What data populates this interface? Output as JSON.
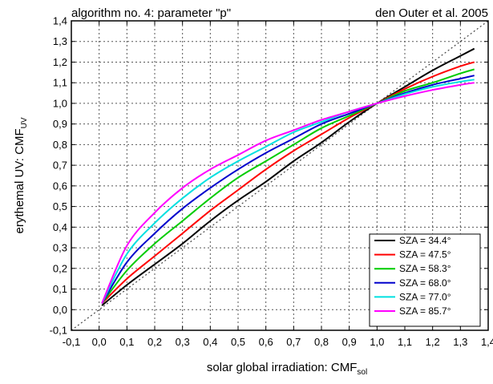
{
  "chart_data": {
    "type": "line",
    "title_left": "algorithm no. 4: parameter \"p\"",
    "title_right": "den Outer et al. 2005",
    "xlabel_main": "solar global irradiation: CMF",
    "xlabel_sub": "sol",
    "ylabel_main": "erythemal UV: CMF",
    "ylabel_sub": "UV",
    "xlim": [
      -0.1,
      1.4
    ],
    "ylim": [
      -0.1,
      1.4
    ],
    "xticks": [
      "-0,1",
      "0,0",
      "0,1",
      "0,2",
      "0,3",
      "0,4",
      "0,5",
      "0,6",
      "0,7",
      "0,8",
      "0,9",
      "1,0",
      "1,1",
      "1,2",
      "1,3",
      "1,4"
    ],
    "yticks": [
      "-0,1",
      "0,0",
      "0,1",
      "0,2",
      "0,3",
      "0,4",
      "0,5",
      "0,6",
      "0,7",
      "0,8",
      "0,9",
      "1,0",
      "1,1",
      "1,2",
      "1,3",
      "1,4"
    ],
    "grid": true,
    "legend_position": "bottom-right",
    "reference_line": {
      "style": "dotted",
      "x": [
        -0.1,
        1.4
      ],
      "y": [
        -0.1,
        1.4
      ]
    },
    "x": [
      0.01,
      0.1,
      0.2,
      0.3,
      0.4,
      0.5,
      0.6,
      0.7,
      0.8,
      0.9,
      1.0,
      1.1,
      1.2,
      1.3,
      1.35
    ],
    "series": [
      {
        "name": "SZA = 34.4°",
        "color": "#000000",
        "values": [
          0.02,
          0.12,
          0.22,
          0.32,
          0.43,
          0.53,
          0.62,
          0.72,
          0.81,
          0.91,
          1.0,
          1.08,
          1.16,
          1.23,
          1.265
        ]
      },
      {
        "name": "SZA = 47.5°",
        "color": "#ff0000",
        "values": [
          0.03,
          0.15,
          0.26,
          0.37,
          0.48,
          0.58,
          0.68,
          0.77,
          0.85,
          0.93,
          1.0,
          1.07,
          1.13,
          1.18,
          1.2
        ]
      },
      {
        "name": "SZA = 58.3°",
        "color": "#00cc00",
        "values": [
          0.03,
          0.19,
          0.32,
          0.43,
          0.54,
          0.64,
          0.72,
          0.8,
          0.88,
          0.94,
          1.0,
          1.06,
          1.1,
          1.145,
          1.165
        ]
      },
      {
        "name": "SZA = 68.0°",
        "color": "#0000cc",
        "values": [
          0.03,
          0.23,
          0.37,
          0.49,
          0.59,
          0.68,
          0.76,
          0.83,
          0.9,
          0.95,
          1.0,
          1.05,
          1.09,
          1.12,
          1.135
        ]
      },
      {
        "name": "SZA = 77.0°",
        "color": "#00e0e0",
        "values": [
          0.03,
          0.27,
          0.42,
          0.54,
          0.64,
          0.72,
          0.79,
          0.86,
          0.91,
          0.96,
          1.0,
          1.045,
          1.08,
          1.105,
          1.115
        ]
      },
      {
        "name": "SZA = 85.7°",
        "color": "#ff00ff",
        "values": [
          0.03,
          0.31,
          0.47,
          0.59,
          0.68,
          0.75,
          0.82,
          0.87,
          0.92,
          0.96,
          1.0,
          1.035,
          1.065,
          1.09,
          1.1
        ]
      }
    ]
  }
}
